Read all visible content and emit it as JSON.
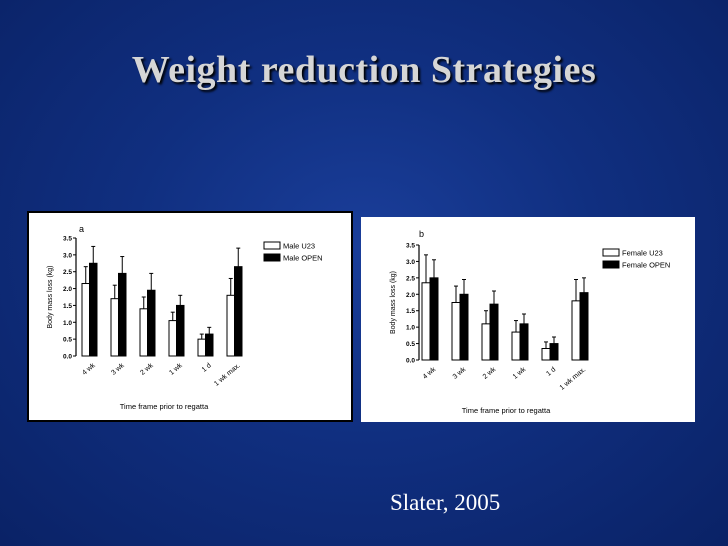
{
  "slide": {
    "title": "Weight reduction Strategies",
    "citation": "Slater, 2005"
  },
  "chart_data": [
    {
      "type": "bar",
      "panel_label": "a",
      "ylabel": "Body mass loss (kg)",
      "xlabel": "Time frame prior to regatta",
      "categories": [
        "4 wk",
        "3 wk",
        "2 wk",
        "1 wk",
        "1 d",
        "1 wk max."
      ],
      "ylim": [
        0,
        3.5
      ],
      "yticks": [
        "0.0",
        "0.5",
        "1.0",
        "1.5",
        "2.0",
        "2.5",
        "3.0",
        "3.5"
      ],
      "legend_position": "top-right",
      "series": [
        {
          "name": "Male U23",
          "fill": "#ffffff",
          "values": [
            2.15,
            1.7,
            1.4,
            1.05,
            0.5,
            1.8
          ],
          "errors": [
            0.5,
            0.4,
            0.35,
            0.25,
            0.15,
            0.5
          ]
        },
        {
          "name": "Male OPEN",
          "fill": "#000000",
          "values": [
            2.75,
            2.45,
            1.95,
            1.5,
            0.65,
            2.65
          ],
          "errors": [
            0.5,
            0.5,
            0.5,
            0.3,
            0.2,
            0.55
          ]
        }
      ]
    },
    {
      "type": "bar",
      "panel_label": "b",
      "ylabel": "Body mass loss (kg)",
      "xlabel": "Time frame prior to regatta",
      "categories": [
        "4 wk",
        "3 wk",
        "2 wk",
        "1 wk",
        "1 d",
        "1 wk max."
      ],
      "ylim": [
        0,
        3.5
      ],
      "yticks": [
        "0.0",
        "0.5",
        "1.0",
        "1.5",
        "2.0",
        "2.5",
        "3.0",
        "3.5"
      ],
      "legend_position": "top-right",
      "series": [
        {
          "name": "Female U23",
          "fill": "#ffffff",
          "values": [
            2.35,
            1.75,
            1.1,
            0.85,
            0.35,
            1.8
          ],
          "errors": [
            0.85,
            0.5,
            0.4,
            0.35,
            0.2,
            0.65
          ]
        },
        {
          "name": "Female OPEN",
          "fill": "#000000",
          "values": [
            2.5,
            2.0,
            1.7,
            1.1,
            0.5,
            2.05
          ],
          "errors": [
            0.55,
            0.45,
            0.4,
            0.3,
            0.2,
            0.45
          ]
        }
      ]
    }
  ]
}
